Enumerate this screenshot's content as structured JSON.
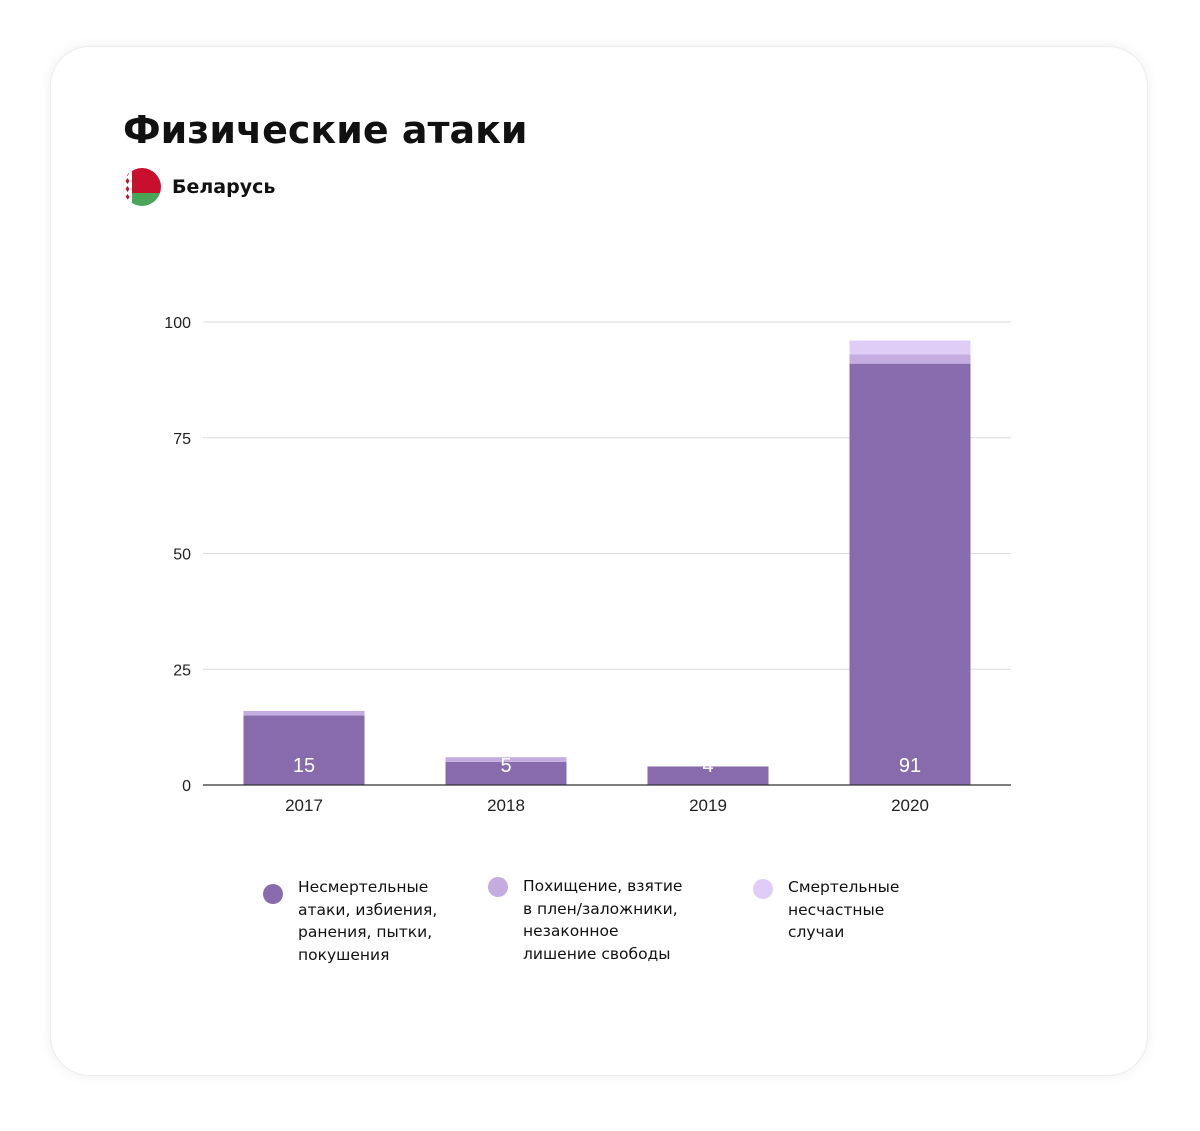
{
  "header": {
    "title": "Физические атаки",
    "country": "Беларусь"
  },
  "colors": {
    "series1": "#886bad",
    "series2": "#c4abe0",
    "series3": "#e0cdf7",
    "gridline": "#dcdcdc",
    "baseline": "#333333",
    "flag_red": "#c8102e",
    "flag_green": "#4aa657"
  },
  "chart_data": {
    "type": "bar",
    "stacked": true,
    "categories": [
      "2017",
      "2018",
      "2019",
      "2020"
    ],
    "series": [
      {
        "name": "Несмертельные\nатаки, избиения,\nранения, пытки,\nпокушения",
        "values": [
          15,
          5,
          4,
          91
        ],
        "labels": [
          "15",
          "5",
          "4",
          "91"
        ]
      },
      {
        "name": "Похищение, взятие\nв плен/заложники,\nнезаконное\nлишение свободы",
        "values": [
          1,
          1,
          0,
          2
        ]
      },
      {
        "name": "Смертельные\nнесчастные\nслучаи",
        "values": [
          0,
          0,
          0,
          3
        ]
      }
    ],
    "yticks": [
      "0",
      "25",
      "50",
      "75",
      "100"
    ],
    "ylim": [
      0,
      100
    ],
    "grid": true,
    "legend_position": "bottom"
  }
}
